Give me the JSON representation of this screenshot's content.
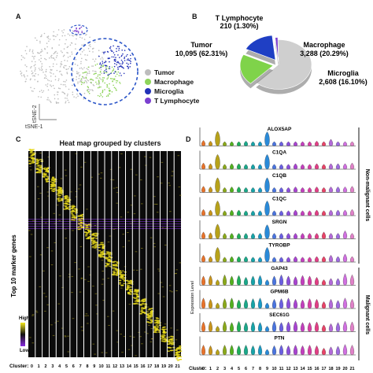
{
  "panels": {
    "a": "A",
    "b": "B",
    "c": "C",
    "d": "D"
  },
  "tsne": {
    "legend": [
      {
        "name": "Tumor",
        "color": "#bdbdbd"
      },
      {
        "name": "Macrophage",
        "color": "#8ed45a"
      },
      {
        "name": "Microglia",
        "color": "#2231b8"
      },
      {
        "name": "T Lymphocyte",
        "color": "#7b3fd0"
      }
    ],
    "axis_y": "tSNE-2",
    "axis_x": "tSNE-1"
  },
  "chart_data": [
    {
      "type": "pie",
      "labels": [
        "Tumor",
        "Macrophage",
        "Microglia",
        "T Lymphocyte"
      ],
      "values": [
        10095,
        3288,
        2608,
        210
      ],
      "percent_labels": [
        "10,095 (62.31%)",
        "3,288 (20.29%)",
        "2,608 (16.10%)",
        "210 (1.30%)"
      ],
      "colors": [
        "#cfcfcf",
        "#7fd34a",
        "#1f3fc4",
        "#7b3fd0"
      ]
    },
    {
      "type": "heatmap",
      "title": "Heat map grouped by clusters",
      "ylabel": "Top 10 marker genes",
      "legend_high": "High",
      "legend_low": "Low",
      "xlabel": "Cluster:",
      "clusters": [
        "0",
        "1",
        "2",
        "3",
        "4",
        "5",
        "6",
        "7",
        "8",
        "9",
        "10",
        "11",
        "12",
        "13",
        "14",
        "15",
        "16",
        "17",
        "18",
        "19",
        "20",
        "21"
      ]
    },
    {
      "type": "violin",
      "ylabel": "Expression Level",
      "xlabel": "Cluster:",
      "clusters": [
        "0",
        "1",
        "2",
        "3",
        "4",
        "5",
        "6",
        "7",
        "8",
        "9",
        "10",
        "11",
        "12",
        "13",
        "14",
        "15",
        "16",
        "17",
        "18",
        "19",
        "20",
        "21"
      ],
      "genes": [
        "ALOX5AP",
        "C1QA",
        "C1QB",
        "C1QC",
        "SRGN",
        "TYROBP",
        "GAP43",
        "GPM6B",
        "SEC61G",
        "PTN"
      ],
      "group_labels": [
        "Non-malignant cells",
        "Malignant cells"
      ],
      "colors": [
        "#e8732a",
        "#c8941a",
        "#b7a21a",
        "#8aa81a",
        "#52b01e",
        "#1fae5a",
        "#1aa88a",
        "#16a3a8",
        "#1a9ac4",
        "#2a8ad8",
        "#4a74de",
        "#6a5fe0",
        "#8a4fdc",
        "#a844d0",
        "#c33fbe",
        "#d83ea4",
        "#e23f86",
        "#e84368",
        "#b36ad8",
        "#9d6be0",
        "#d070e0",
        "#e081c8"
      ],
      "levels": [
        [
          0.2,
          0.15,
          0.95,
          0.1,
          0.1,
          0.1,
          0.15,
          0.1,
          0.1,
          0.9,
          0.1,
          0.1,
          0.1,
          0.1,
          0.1,
          0.1,
          0.15,
          0.1,
          0.3,
          0.1,
          0.1,
          0.1
        ],
        [
          0.25,
          0.2,
          0.95,
          0.15,
          0.2,
          0.2,
          0.15,
          0.15,
          0.15,
          0.95,
          0.15,
          0.15,
          0.15,
          0.2,
          0.15,
          0.15,
          0.2,
          0.15,
          0.2,
          0.2,
          0.2,
          0.25
        ],
        [
          0.25,
          0.2,
          0.95,
          0.15,
          0.2,
          0.2,
          0.15,
          0.15,
          0.15,
          0.95,
          0.15,
          0.15,
          0.15,
          0.2,
          0.15,
          0.15,
          0.2,
          0.15,
          0.2,
          0.2,
          0.2,
          0.25
        ],
        [
          0.25,
          0.2,
          0.95,
          0.15,
          0.2,
          0.2,
          0.15,
          0.15,
          0.15,
          0.95,
          0.15,
          0.15,
          0.15,
          0.2,
          0.15,
          0.15,
          0.2,
          0.15,
          0.2,
          0.2,
          0.2,
          0.25
        ],
        [
          0.3,
          0.25,
          0.95,
          0.2,
          0.2,
          0.2,
          0.2,
          0.2,
          0.2,
          0.9,
          0.2,
          0.2,
          0.2,
          0.2,
          0.2,
          0.2,
          0.2,
          0.3,
          0.2,
          0.2,
          0.4,
          0.2
        ],
        [
          0.3,
          0.2,
          0.95,
          0.15,
          0.2,
          0.2,
          0.2,
          0.15,
          0.15,
          0.95,
          0.15,
          0.15,
          0.15,
          0.2,
          0.15,
          0.15,
          0.2,
          0.2,
          0.3,
          0.2,
          0.4,
          0.2
        ],
        [
          0.5,
          0.55,
          0.2,
          0.6,
          0.5,
          0.55,
          0.4,
          0.5,
          0.55,
          0.2,
          0.5,
          0.6,
          0.5,
          0.45,
          0.55,
          0.5,
          0.4,
          0.2,
          0.3,
          0.3,
          0.7,
          0.6
        ],
        [
          0.6,
          0.5,
          0.2,
          0.55,
          0.6,
          0.45,
          0.5,
          0.55,
          0.6,
          0.2,
          0.5,
          0.55,
          0.6,
          0.5,
          0.45,
          0.55,
          0.5,
          0.3,
          0.5,
          0.4,
          0.6,
          0.5
        ],
        [
          0.55,
          0.6,
          0.2,
          0.6,
          0.5,
          0.6,
          0.5,
          0.55,
          0.5,
          0.2,
          0.6,
          0.5,
          0.55,
          0.6,
          0.5,
          0.5,
          0.55,
          0.3,
          0.4,
          0.5,
          0.6,
          0.55
        ],
        [
          0.55,
          0.5,
          0.2,
          0.55,
          0.55,
          0.5,
          0.55,
          0.5,
          0.55,
          0.2,
          0.5,
          0.55,
          0.5,
          0.55,
          0.5,
          0.55,
          0.5,
          0.3,
          0.4,
          0.45,
          0.6,
          0.55
        ]
      ]
    }
  ]
}
